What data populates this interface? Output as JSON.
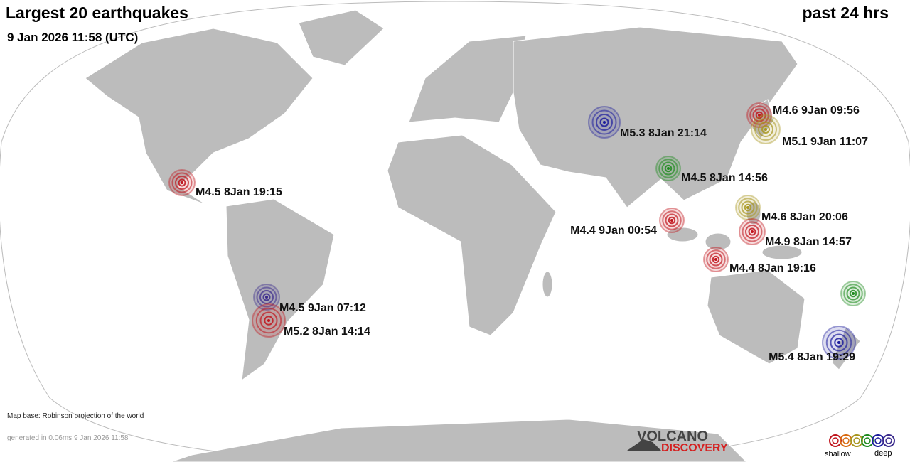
{
  "header": {
    "title": "Largest 20 earthquakes",
    "period": "past 24 hrs",
    "timestamp": "9 Jan 2026 11:58 (UTC)"
  },
  "quakes": [
    {
      "label": "M4.6  9Jan 09:56",
      "color": "#c0141c"
    },
    {
      "label": "M5.1  9Jan 11:07",
      "color": "#a8961e"
    },
    {
      "label": "M5.3  8Jan 21:14",
      "color": "#1c1c9c"
    },
    {
      "label": "M4.5  8Jan 14:56",
      "color": "#1e8a1e"
    },
    {
      "label": "M4.5  8Jan 19:15",
      "color": "#c0141c"
    },
    {
      "label": "M4.6  8Jan 20:06",
      "color": "#a8961e"
    },
    {
      "label": "M4.4  9Jan 00:54",
      "color": "#c0141c"
    },
    {
      "label": "M4.9  8Jan 14:57",
      "color": "#c0141c"
    },
    {
      "label": "M4.4  8Jan 19:16",
      "color": "#c0141c"
    },
    {
      "label": "M4.5  9Jan 07:12",
      "color": "#3a2a8c"
    },
    {
      "label": "M5.2  8Jan 14:14",
      "color": "#c0141c"
    },
    {
      "label": "M5.4  8Jan 19:29",
      "color": "#1c1c9c"
    }
  ],
  "footer": {
    "map_base": "Map base: Robinson projection of the world",
    "generated": "generated in 0.06ms  9 Jan 2026 11:58"
  },
  "logo": {
    "top": "VOLCANO",
    "bottom": "DISCOVERY"
  },
  "legend": {
    "shallow": "shallow",
    "deep": "deep",
    "colors": [
      "#c0141c",
      "#d86a10",
      "#a8961e",
      "#1e8a1e",
      "#1c1c9c",
      "#3a2a8c"
    ]
  }
}
